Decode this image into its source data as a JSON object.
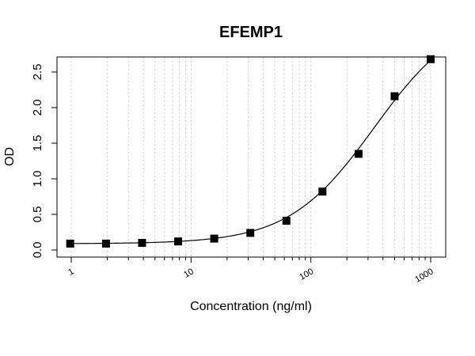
{
  "chart_data": {
    "type": "scatter",
    "title": "EFEMP1",
    "xlabel": "Concentration (ng/ml)",
    "ylabel": "OD",
    "x_scale": "log",
    "xlim": [
      1,
      1000
    ],
    "ylim": [
      0,
      2.7
    ],
    "grid": "vertical dotted lines at log minor ticks",
    "x_ticks": [
      "1",
      "10",
      "100",
      "1000"
    ],
    "y_ticks": [
      "0.0",
      "0.5",
      "1.0",
      "1.5",
      "2.0",
      "2.5"
    ],
    "series": [
      {
        "marker": "square",
        "x": [
          0.98,
          1.95,
          3.9,
          7.8,
          15.6,
          31.25,
          62.5,
          125,
          250,
          500,
          1000
        ],
        "y": [
          0.09,
          0.09,
          0.1,
          0.12,
          0.16,
          0.24,
          0.41,
          0.82,
          1.35,
          2.16,
          2.68
        ]
      }
    ],
    "fit_curve": "4-parameter logistic fit through points",
    "colors": {
      "marker": "#000000",
      "curve": "#000000",
      "grid": "#c8c8c8",
      "axis": "#000000"
    }
  }
}
